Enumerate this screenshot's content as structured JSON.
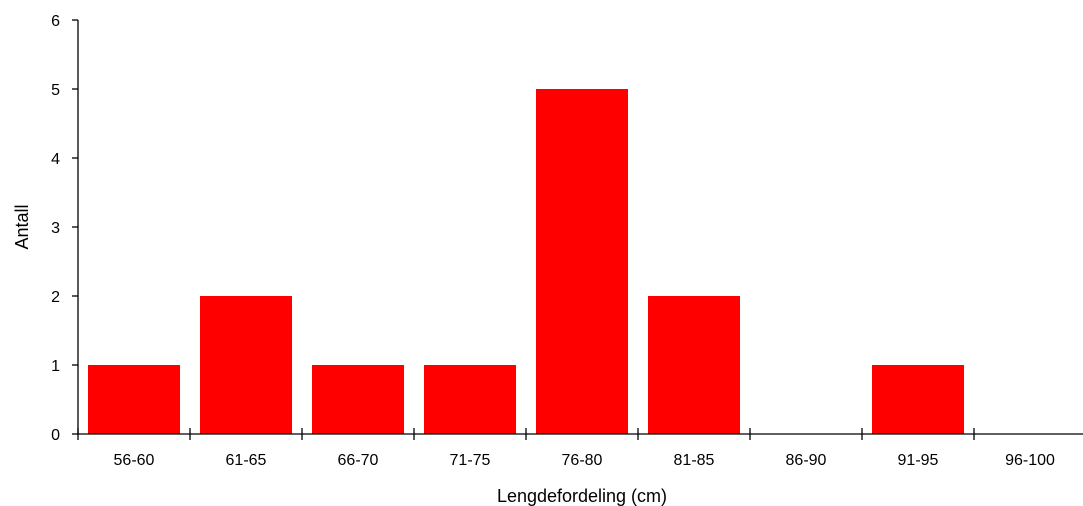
{
  "chart_data": {
    "type": "bar",
    "title": "",
    "xlabel": "Lengdefordeling (cm)",
    "ylabel": "Antall",
    "categories": [
      "56-60",
      "61-65",
      "66-70",
      "71-75",
      "76-80",
      "81-85",
      "86-90",
      "91-95",
      "96-100"
    ],
    "values": [
      1,
      2,
      1,
      1,
      5,
      2,
      0,
      1,
      0
    ],
    "ylim": [
      0,
      6
    ],
    "yticks": [
      "0",
      "1",
      "2",
      "3",
      "4",
      "5",
      "6"
    ],
    "grid": false,
    "legend": "none",
    "bar_color": "#ff0000"
  }
}
